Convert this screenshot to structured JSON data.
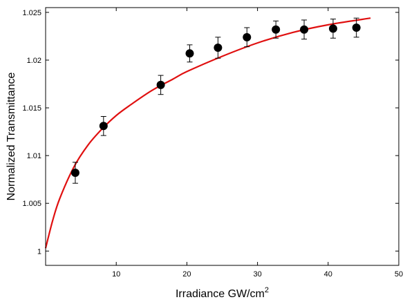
{
  "chart_data": {
    "type": "scatter",
    "title": "",
    "xlabel": "Irradiance GW/cm",
    "xlabel_superscript": "2",
    "ylabel": "Normalized Transmittance",
    "xlim": [
      0,
      50
    ],
    "ylim": [
      0.9985,
      1.0255
    ],
    "xticks": [
      10,
      20,
      30,
      40,
      50
    ],
    "yticks": [
      1,
      1.005,
      1.01,
      1.015,
      1.02,
      1.025
    ],
    "ytick_labels": [
      "1",
      "1.005",
      "1.01",
      "1.015",
      "1.02",
      "1.025"
    ],
    "grid": false,
    "series": [
      {
        "kind": "points-with-errorbars",
        "color": "#000000",
        "x": [
          4.2,
          8.2,
          16.3,
          20.4,
          24.4,
          28.5,
          32.6,
          36.6,
          40.7,
          44.0
        ],
        "y": [
          1.0082,
          1.0131,
          1.0174,
          1.0207,
          1.0213,
          1.0224,
          1.0232,
          1.0232,
          1.0233,
          1.0234
        ],
        "yerr": [
          0.0011,
          0.001,
          0.001,
          0.0009,
          0.0011,
          0.001,
          0.0009,
          0.001,
          0.001,
          0.001
        ]
      },
      {
        "kind": "fit-line",
        "color": "#e01010",
        "x": [
          0.0,
          1.0,
          2.0,
          4.0,
          6.0,
          8.0,
          10.0,
          12.0,
          15.0,
          18.0,
          20.0,
          25.0,
          30.0,
          35.0,
          40.0,
          46.0
        ],
        "y": [
          1.0003,
          1.0032,
          1.0055,
          1.0088,
          1.0111,
          1.0128,
          1.0142,
          1.0153,
          1.0168,
          1.018,
          1.0188,
          1.0204,
          1.0218,
          1.0229,
          1.0237,
          1.0244
        ]
      }
    ]
  }
}
